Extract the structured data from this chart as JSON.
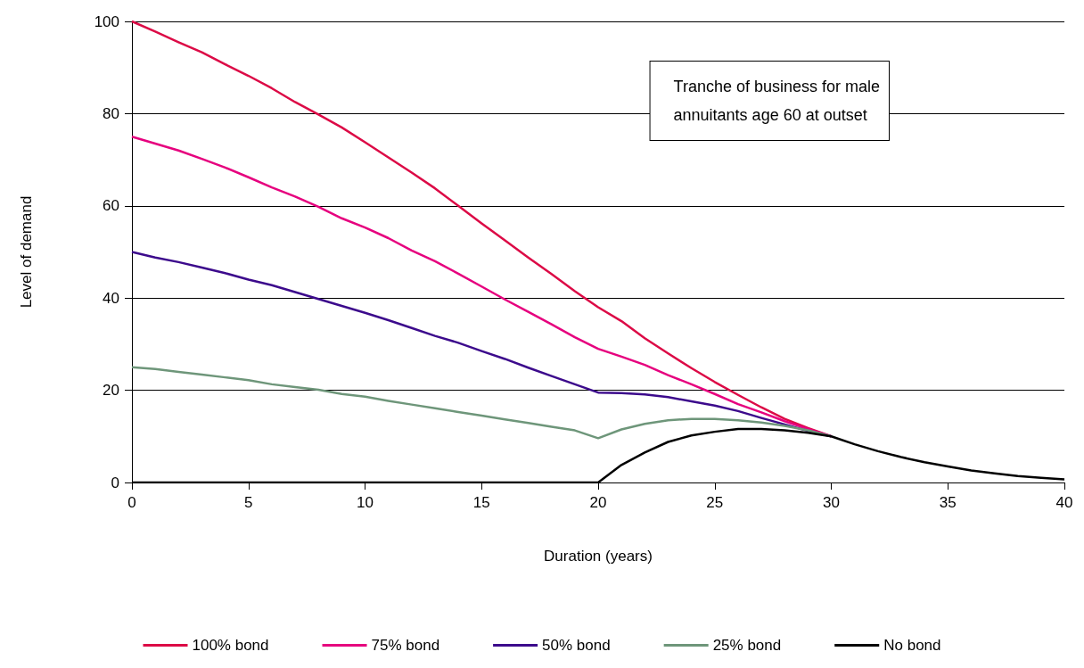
{
  "chart_data": {
    "type": "line",
    "xlabel": "Duration (years)",
    "ylabel": "Level of demand",
    "x": [
      0,
      1,
      2,
      3,
      4,
      5,
      6,
      7,
      8,
      9,
      10,
      11,
      12,
      13,
      14,
      15,
      16,
      17,
      18,
      19,
      20,
      21,
      22,
      23,
      24,
      25,
      26,
      27,
      28,
      29,
      30,
      31,
      32,
      33,
      34,
      35,
      36,
      37,
      38,
      39,
      40
    ],
    "series": [
      {
        "name": "100% bond",
        "color": "#dc0a46",
        "values": [
          100,
          97.8,
          95.5,
          93.3,
          90.7,
          88.2,
          85.5,
          82.5,
          79.8,
          77,
          73.8,
          70.5,
          67.2,
          63.8,
          60,
          56.2,
          52.5,
          48.8,
          45.2,
          41.5,
          38,
          35,
          31.3,
          28,
          24.8,
          21.8,
          19,
          16.3,
          13.8,
          11.8,
          10,
          null,
          null,
          null,
          null,
          null,
          null,
          null,
          null,
          null,
          null
        ]
      },
      {
        "name": "75% bond",
        "color": "#e6007e",
        "values": [
          75,
          73.5,
          72,
          70.2,
          68.3,
          66.2,
          64,
          62,
          59.8,
          57.3,
          55.3,
          53,
          50.3,
          48,
          45.3,
          42.5,
          39.7,
          37,
          34.3,
          31.5,
          29,
          27.3,
          25.5,
          23.3,
          21.3,
          19.2,
          17,
          15.2,
          13.3,
          11.6,
          10,
          null,
          null,
          null,
          null,
          null,
          null,
          null,
          null,
          null,
          null
        ]
      },
      {
        "name": "50% bond",
        "color": "#3c0a8c",
        "values": [
          50,
          48.8,
          47.8,
          46.6,
          45.4,
          44,
          42.8,
          41.3,
          39.8,
          38.3,
          36.8,
          35.2,
          33.5,
          31.8,
          30.3,
          28.5,
          26.8,
          24.9,
          23.1,
          21.3,
          19.5,
          19.4,
          19.1,
          18.5,
          17.6,
          16.7,
          15.5,
          14,
          12.6,
          11.2,
          10,
          null,
          null,
          null,
          null,
          null,
          null,
          null,
          null,
          null,
          null
        ]
      },
      {
        "name": "25% bond",
        "color": "#6e967a",
        "values": [
          25,
          24.6,
          24,
          23.4,
          22.8,
          22.2,
          21.3,
          20.7,
          20.1,
          19.2,
          18.6,
          17.7,
          16.9,
          16.1,
          15.3,
          14.5,
          13.7,
          12.9,
          12.1,
          11.3,
          9.6,
          11.5,
          12.7,
          13.5,
          13.8,
          13.8,
          13.5,
          13,
          12.3,
          11.3,
          10,
          null,
          null,
          null,
          null,
          null,
          null,
          null,
          null,
          null,
          null
        ]
      },
      {
        "name": "No bond",
        "color": "#000000",
        "values": [
          0,
          0,
          0,
          0,
          0,
          0,
          0,
          0,
          0,
          0,
          0,
          0,
          0,
          0,
          0,
          0,
          0,
          0,
          0,
          0,
          0,
          3.8,
          6.5,
          8.8,
          10.2,
          11,
          11.6,
          11.6,
          11.3,
          10.8,
          10,
          8.3,
          6.8,
          5.5,
          4.4,
          3.5,
          2.6,
          2,
          1.4,
          1,
          0.7
        ]
      }
    ],
    "xlim": [
      0,
      40
    ],
    "xticks": [
      0,
      5,
      10,
      15,
      20,
      25,
      30,
      35,
      40
    ],
    "ylim": [
      0,
      100
    ],
    "yticks": [
      0,
      20,
      40,
      60,
      80,
      100
    ],
    "grid": "y",
    "legend": "bottom",
    "marker": "none",
    "line_style": "solid",
    "annotations": [
      "Tranche of business for male\nannuitants age 60 at outset"
    ]
  }
}
